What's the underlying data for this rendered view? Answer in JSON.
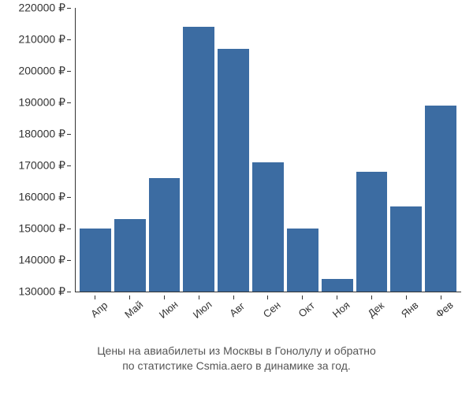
{
  "chart": {
    "type": "bar",
    "categories": [
      "Апр",
      "Май",
      "Июн",
      "Июл",
      "Авг",
      "Сен",
      "Окт",
      "Ноя",
      "Дек",
      "Янв",
      "Фев"
    ],
    "values": [
      150000,
      153000,
      166000,
      214000,
      207000,
      171000,
      150000,
      134000,
      168000,
      157000,
      189000
    ],
    "bar_color": "#3c6ca2",
    "background_color": "#ffffff",
    "ylim": [
      130000,
      220000
    ],
    "yticks": [
      130000,
      140000,
      150000,
      160000,
      170000,
      180000,
      190000,
      200000,
      210000,
      220000
    ],
    "ytick_labels": [
      "130000 ₽",
      "140000 ₽",
      "150000 ₽",
      "160000 ₽",
      "170000 ₽",
      "180000 ₽",
      "190000 ₽",
      "200000 ₽",
      "210000 ₽",
      "220000 ₽"
    ],
    "label_fontsize": 14,
    "xlabel_fontsize": 13,
    "xlabel_rotation": -40,
    "caption_line1": "Цены на авиабилеты из Москвы в Гонолулу и обратно",
    "caption_line2": "по статистике Csmia.aero в динамике за год.",
    "caption_fontsize": 14,
    "caption_color": "#555555"
  }
}
